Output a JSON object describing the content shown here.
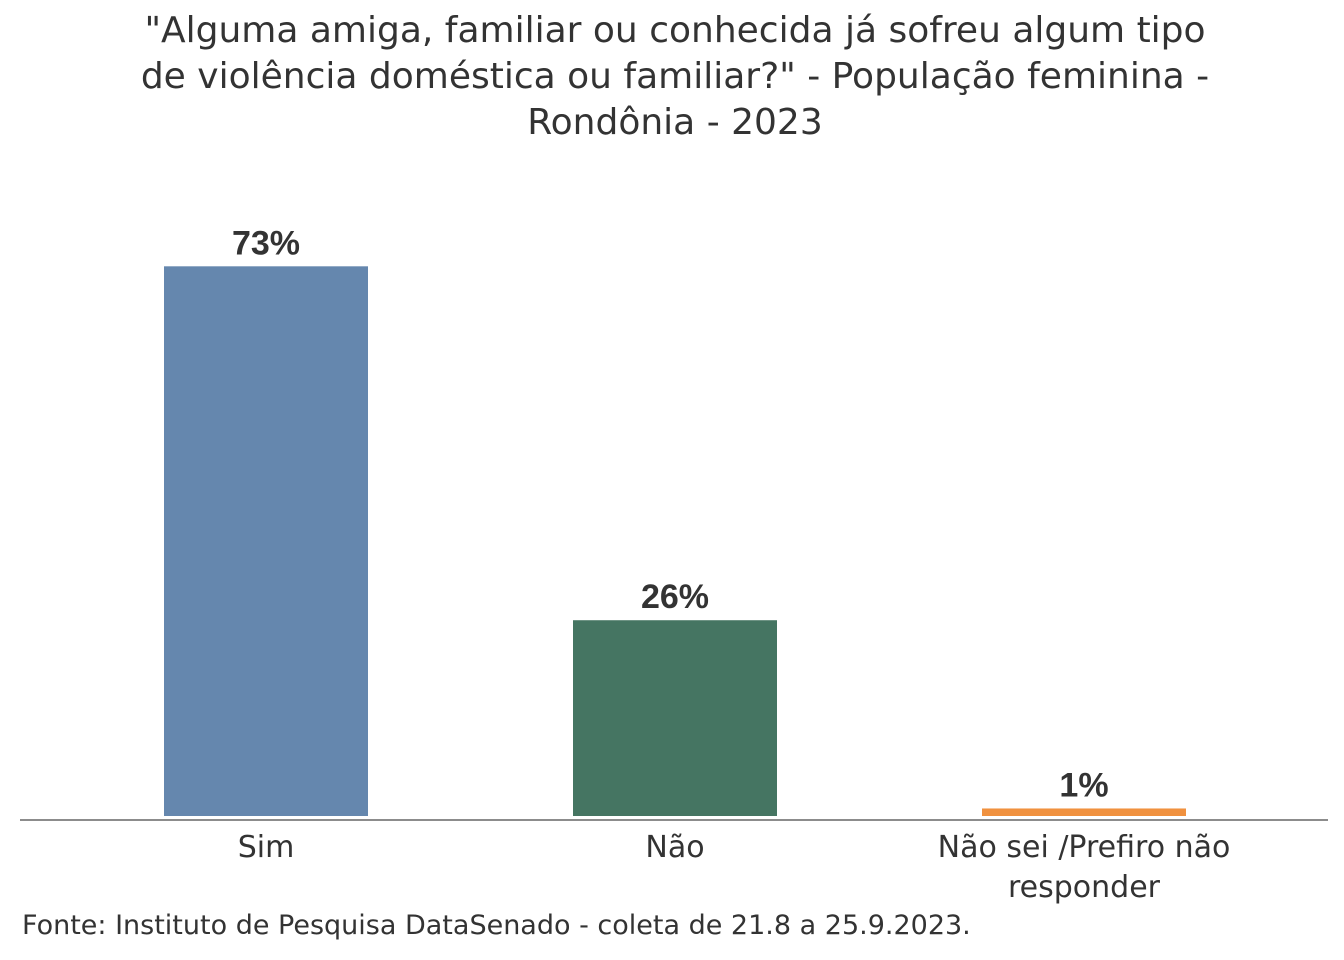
{
  "chart_data": {
    "type": "bar",
    "title_lines": [
      "\"Alguma amiga, familiar ou conhecida já sofreu algum tipo",
      "de violência doméstica ou familiar?\" - População feminina -",
      "Rondônia - 2023"
    ],
    "categories": [
      [
        "Sim"
      ],
      [
        "Não"
      ],
      [
        "Não sei /Prefiro não",
        "responder"
      ]
    ],
    "values": [
      73,
      26,
      1
    ],
    "data_labels": [
      "73%",
      "26%",
      "1%"
    ],
    "colors": [
      "#6587ae",
      "#457562",
      "#f0913f"
    ],
    "ylim": [
      0,
      75
    ],
    "xlabel": "",
    "ylabel": "",
    "grid": false,
    "legend": "none"
  },
  "source": "Fonte: Instituto de Pesquisa DataSenado - coleta de 21.8 a 25.9.2023."
}
